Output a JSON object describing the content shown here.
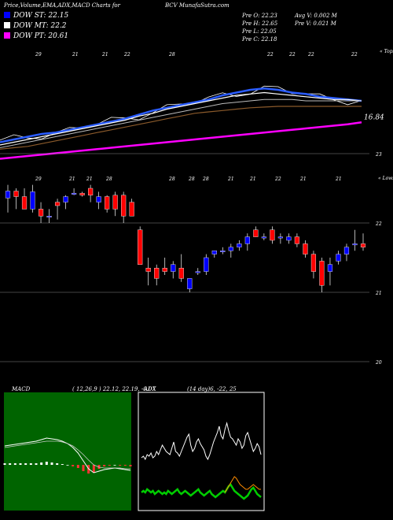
{
  "header": {
    "left": "Price,Volume,EMA,ADX,MACD Charts for",
    "center": "BCV MunafaSutra.com",
    "stats": {
      "open": "Pre  O: 22.23",
      "high": "Pre  H: 22.65",
      "low": "Pre  L: 22.05",
      "close": "Pre  C: 22.18",
      "avg_vol": "Avg V: 0.002  M",
      "pre_vol": "Pre  V: 0.021 M"
    }
  },
  "legend": [
    {
      "text": "DOW ST: 22.15",
      "color": "#0000ff"
    },
    {
      "text": "DOW MT: 22.2",
      "color": "#ffffff"
    },
    {
      "text": "DOW PT: 20.61",
      "color": "#ff00ff"
    }
  ],
  "colors": {
    "up": "#0000ff",
    "down": "#ff0000",
    "ema_short": "#2a5cff",
    "ema_pt": "#ff00ff",
    "ema_long": "#8b5a2b",
    "adx_green": "#00cc00",
    "adx_orange": "#ff8c00",
    "macd_bg": "#006400"
  },
  "chart_data": [
    {
      "type": "line",
      "name": "ema-panel",
      "top_tick_labels": [
        "29",
        "21",
        "21",
        "22",
        "28",
        "22",
        "22",
        "22",
        "22"
      ],
      "bottom_tick_labels": [
        "29",
        "21",
        "21",
        "28",
        "28",
        "28",
        "28",
        "21",
        "21",
        "22",
        "21",
        "21"
      ],
      "corner_top": "« Tops",
      "corner_bottom": "« Lows",
      "last_value_label": "16.84",
      "last_value": 16.84,
      "series": [
        {
          "values": [
            15.4,
            15.6,
            15.8,
            16.0,
            16.1,
            16.3,
            16.5,
            16.7,
            16.9,
            17.1,
            17.4,
            17.7,
            17.9,
            18.1,
            18.3,
            18.5,
            18.8,
            19.0,
            19.2,
            19.3,
            19.2,
            19.0,
            18.9,
            18.7,
            18.6,
            18.5,
            18.4
          ]
        },
        {
          "values": [
            15.2,
            15.4,
            15.6,
            15.8,
            16.0,
            16.2,
            16.4,
            16.6,
            16.8,
            17.0,
            17.3,
            17.5,
            17.8,
            18.0,
            18.2,
            18.4,
            18.6,
            18.8,
            18.9,
            19.0,
            18.9,
            18.8,
            18.7,
            18.6,
            18.5,
            18.5,
            18.4
          ]
        },
        {
          "values": [
            15.0,
            15.2,
            15.4,
            15.6,
            15.8,
            16.0,
            16.2,
            16.4,
            16.6,
            16.8,
            17.0,
            17.2,
            17.4,
            17.6,
            17.8,
            18.0,
            18.2,
            18.3,
            18.4,
            18.5,
            18.5,
            18.5,
            18.4,
            18.4,
            18.4,
            18.4,
            18.4
          ]
        },
        {
          "values": [
            14.9,
            15.0,
            15.1,
            15.3,
            15.5,
            15.7,
            15.9,
            16.1,
            16.3,
            16.5,
            16.7,
            16.9,
            17.1,
            17.3,
            17.5,
            17.6,
            17.7,
            17.8,
            17.9,
            17.95,
            18.0,
            18.0,
            18.0,
            18.0,
            18.0,
            18.0,
            18.0
          ]
        },
        {
          "values": [
            14.2,
            14.3,
            14.4,
            14.5,
            14.6,
            14.7,
            14.8,
            14.9,
            15.0,
            15.1,
            15.2,
            15.3,
            15.4,
            15.5,
            15.6,
            15.7,
            15.8,
            15.9,
            16.0,
            16.1,
            16.2,
            16.3,
            16.4,
            16.5,
            16.6,
            16.7,
            16.84
          ]
        }
      ]
    },
    {
      "type": "candlestick",
      "name": "price-panel",
      "y_tick_labels": [
        {
          "label": "23",
          "value": 23
        },
        {
          "label": "22",
          "value": 22
        },
        {
          "label": "21",
          "value": 21
        },
        {
          "label": "20",
          "value": 20
        }
      ],
      "candles": [
        {
          "o": 22.36,
          "h": 22.55,
          "l": 22.15,
          "c": 22.46
        },
        {
          "o": 22.46,
          "h": 22.5,
          "l": 22.2,
          "c": 22.38
        },
        {
          "o": 22.38,
          "h": 22.5,
          "l": 22.2,
          "c": 22.2
        },
        {
          "o": 22.2,
          "h": 22.55,
          "l": 22.15,
          "c": 22.45
        },
        {
          "o": 22.2,
          "h": 22.3,
          "l": 22.0,
          "c": 22.1
        },
        {
          "o": 22.1,
          "h": 22.2,
          "l": 22.0,
          "c": 22.1
        },
        {
          "o": 22.3,
          "h": 22.35,
          "l": 22.05,
          "c": 22.25
        },
        {
          "o": 22.3,
          "h": 22.4,
          "l": 22.2,
          "c": 22.38
        },
        {
          "o": 22.43,
          "h": 22.5,
          "l": 22.4,
          "c": 22.43
        },
        {
          "o": 22.43,
          "h": 22.45,
          "l": 22.38,
          "c": 22.4
        },
        {
          "o": 22.5,
          "h": 22.55,
          "l": 22.3,
          "c": 22.4
        },
        {
          "o": 22.3,
          "h": 22.45,
          "l": 22.2,
          "c": 22.38
        },
        {
          "o": 22.38,
          "h": 22.4,
          "l": 22.15,
          "c": 22.2
        },
        {
          "o": 22.4,
          "h": 22.45,
          "l": 22.1,
          "c": 22.2
        },
        {
          "o": 22.4,
          "h": 22.45,
          "l": 22.0,
          "c": 22.1
        },
        {
          "o": 22.3,
          "h": 22.35,
          "l": 22.1,
          "c": 22.1
        },
        {
          "o": 21.9,
          "h": 21.95,
          "l": 21.4,
          "c": 21.4
        },
        {
          "o": 21.35,
          "h": 21.5,
          "l": 21.1,
          "c": 21.3
        },
        {
          "o": 21.35,
          "h": 21.4,
          "l": 21.1,
          "c": 21.2
        },
        {
          "o": 21.35,
          "h": 21.5,
          "l": 21.25,
          "c": 21.3
        },
        {
          "o": 21.3,
          "h": 21.45,
          "l": 21.2,
          "c": 21.4
        },
        {
          "o": 21.35,
          "h": 21.55,
          "l": 21.15,
          "c": 21.2
        },
        {
          "o": 21.05,
          "h": 21.2,
          "l": 21.0,
          "c": 21.2
        },
        {
          "o": 21.3,
          "h": 21.35,
          "l": 21.25,
          "c": 21.3
        },
        {
          "o": 21.3,
          "h": 21.55,
          "l": 21.25,
          "c": 21.5
        },
        {
          "o": 21.55,
          "h": 21.6,
          "l": 21.5,
          "c": 21.6
        },
        {
          "o": 21.6,
          "h": 21.65,
          "l": 21.55,
          "c": 21.6
        },
        {
          "o": 21.6,
          "h": 21.7,
          "l": 21.5,
          "c": 21.65
        },
        {
          "o": 21.65,
          "h": 21.75,
          "l": 21.6,
          "c": 21.7
        },
        {
          "o": 21.7,
          "h": 21.85,
          "l": 21.6,
          "c": 21.8
        },
        {
          "o": 21.9,
          "h": 21.95,
          "l": 21.8,
          "c": 21.8
        },
        {
          "o": 21.8,
          "h": 21.85,
          "l": 21.75,
          "c": 21.8
        },
        {
          "o": 21.9,
          "h": 21.95,
          "l": 21.7,
          "c": 21.75
        },
        {
          "o": 21.8,
          "h": 21.85,
          "l": 21.7,
          "c": 21.8
        },
        {
          "o": 21.75,
          "h": 21.85,
          "l": 21.7,
          "c": 21.8
        },
        {
          "o": 21.8,
          "h": 21.85,
          "l": 21.65,
          "c": 21.7
        },
        {
          "o": 21.7,
          "h": 21.75,
          "l": 21.5,
          "c": 21.55
        },
        {
          "o": 21.55,
          "h": 21.6,
          "l": 21.2,
          "c": 21.3
        },
        {
          "o": 21.45,
          "h": 21.5,
          "l": 21.0,
          "c": 21.1
        },
        {
          "o": 21.3,
          "h": 21.5,
          "l": 21.1,
          "c": 21.4
        },
        {
          "o": 21.45,
          "h": 21.6,
          "l": 21.4,
          "c": 21.55
        },
        {
          "o": 21.55,
          "h": 21.7,
          "l": 21.45,
          "c": 21.65
        },
        {
          "o": 21.7,
          "h": 21.9,
          "l": 21.6,
          "c": 21.7
        },
        {
          "o": 21.7,
          "h": 21.85,
          "l": 21.6,
          "c": 21.65
        }
      ]
    },
    {
      "type": "line",
      "name": "macd-panel",
      "title": "MACD",
      "params": "( 12,26,9 ) 22.12,  22.19,  -0.07",
      "series": [
        {
          "values": [
            0.24,
            0.25,
            0.26,
            0.27,
            0.28,
            0.29,
            0.3,
            0.32,
            0.34,
            0.33,
            0.32,
            0.3,
            0.27,
            0.22,
            0.15,
            0.05,
            -0.05,
            -0.1,
            -0.08,
            -0.06,
            -0.05,
            -0.04,
            -0.05,
            -0.06,
            -0.07
          ]
        },
        {
          "values": [
            0.22,
            0.23,
            0.24,
            0.25,
            0.26,
            0.27,
            0.28,
            0.29,
            0.3,
            0.3,
            0.3,
            0.29,
            0.27,
            0.24,
            0.19,
            0.13,
            0.06,
            0.0,
            -0.03,
            -0.04,
            -0.04,
            -0.04,
            -0.04,
            -0.05,
            -0.05
          ]
        }
      ],
      "histogram": [
        0.02,
        0.02,
        0.02,
        0.02,
        0.02,
        0.02,
        0.02,
        0.03,
        0.04,
        0.03,
        0.02,
        0.01,
        0.0,
        -0.02,
        -0.04,
        -0.08,
        -0.11,
        -0.1,
        -0.05,
        -0.02,
        -0.01,
        0.0,
        -0.01,
        -0.01,
        -0.02
      ]
    },
    {
      "type": "line",
      "name": "adx-panel",
      "title": "ADX",
      "params": "(14 day)6,  -22,  25",
      "series": [
        {
          "values": [
            32,
            33,
            31,
            34,
            33,
            35,
            32,
            33,
            36,
            34,
            37,
            40,
            38,
            36,
            35,
            34,
            38,
            42,
            36,
            35,
            33,
            36,
            39,
            42,
            45,
            47,
            40,
            36,
            38,
            42,
            44,
            41,
            39,
            37,
            33,
            31,
            34,
            38,
            42,
            45,
            48,
            52,
            46,
            44,
            50,
            54,
            49,
            45,
            44,
            42,
            40,
            44,
            42,
            38,
            40,
            46,
            48,
            44,
            40,
            36,
            38,
            41,
            39,
            34
          ]
        },
        {
          "values": [
            10,
            11,
            10,
            12,
            11,
            10,
            11,
            9,
            10,
            11,
            10,
            9,
            10,
            9,
            11,
            10,
            9,
            10,
            11,
            12,
            10,
            9,
            10,
            11,
            10,
            9,
            8,
            9,
            10,
            11,
            12,
            10,
            9,
            8,
            9,
            10,
            11,
            9,
            8,
            7,
            8,
            9,
            10,
            11,
            10,
            12,
            14,
            15,
            13,
            11,
            10,
            9,
            8,
            7,
            6,
            7,
            8,
            10,
            12,
            13,
            11,
            9,
            8,
            7
          ]
        },
        {
          "values": [
            null,
            null,
            null,
            null,
            null,
            null,
            null,
            null,
            null,
            null,
            null,
            null,
            null,
            null,
            null,
            null,
            null,
            null,
            null,
            null,
            null,
            null,
            null,
            null,
            null,
            null,
            null,
            null,
            null,
            null,
            null,
            null,
            null,
            null,
            null,
            null,
            null,
            null,
            null,
            null,
            null,
            null,
            null,
            null,
            10,
            12,
            14,
            16,
            18,
            20,
            19,
            17,
            15,
            14,
            13,
            12,
            12,
            13,
            14,
            15,
            14,
            13,
            12,
            12
          ]
        }
      ]
    }
  ]
}
